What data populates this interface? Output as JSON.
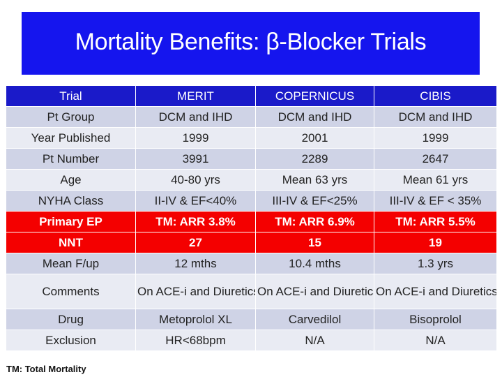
{
  "slide": {
    "title": "Mortality Benefits: β-Blocker Trials",
    "footnote": "TM:  Total Mortality",
    "colors": {
      "banner": "#1515ee",
      "header_row": "#1a1ac9",
      "highlight_row": "#f40000",
      "row_dark": "#cfd3e6",
      "row_light": "#e9ebf3"
    }
  },
  "table": {
    "headers": [
      "Trial",
      "MERIT",
      "COPERNICUS",
      "CIBIS"
    ],
    "rows": [
      {
        "label": "Pt Group",
        "merit": "DCM and IHD",
        "copernicus": "DCM and IHD",
        "cibis": "DCM and IHD"
      },
      {
        "label": "Year Published",
        "merit": "1999",
        "copernicus": "2001",
        "cibis": "1999"
      },
      {
        "label": "Pt Number",
        "merit": "3991",
        "copernicus": "2289",
        "cibis": "2647"
      },
      {
        "label": "Age",
        "merit": "40-80 yrs",
        "copernicus": "Mean 63 yrs",
        "cibis": "Mean 61 yrs"
      },
      {
        "label": "NYHA Class",
        "merit": "II-IV & EF<40%",
        "copernicus": "III-IV & EF<25%",
        "cibis": "III-IV & EF < 35%"
      },
      {
        "label": "Primary EP",
        "merit": "TM:  ARR 3.8%",
        "copernicus": "TM:  ARR 6.9%",
        "cibis": "TM: ARR 5.5%"
      },
      {
        "label": "NNT",
        "merit": "27",
        "copernicus": "15",
        "cibis": "19"
      },
      {
        "label": "Mean F/up",
        "merit": "12 mths",
        "copernicus": "10.4 mths",
        "cibis": "1.3 yrs"
      },
      {
        "label": "Comments",
        "merit": "On ACE-i and Diuretics",
        "copernicus": "On ACE-i and Diuretics",
        "cibis": "On ACE-i and Diuretics"
      },
      {
        "label": "Drug",
        "merit": "Metoprolol XL",
        "copernicus": "Carvedilol",
        "cibis": "Bisoprolol"
      },
      {
        "label": "Exclusion",
        "merit": "HR<68bpm",
        "copernicus": "N/A",
        "cibis": "N/A"
      }
    ]
  }
}
